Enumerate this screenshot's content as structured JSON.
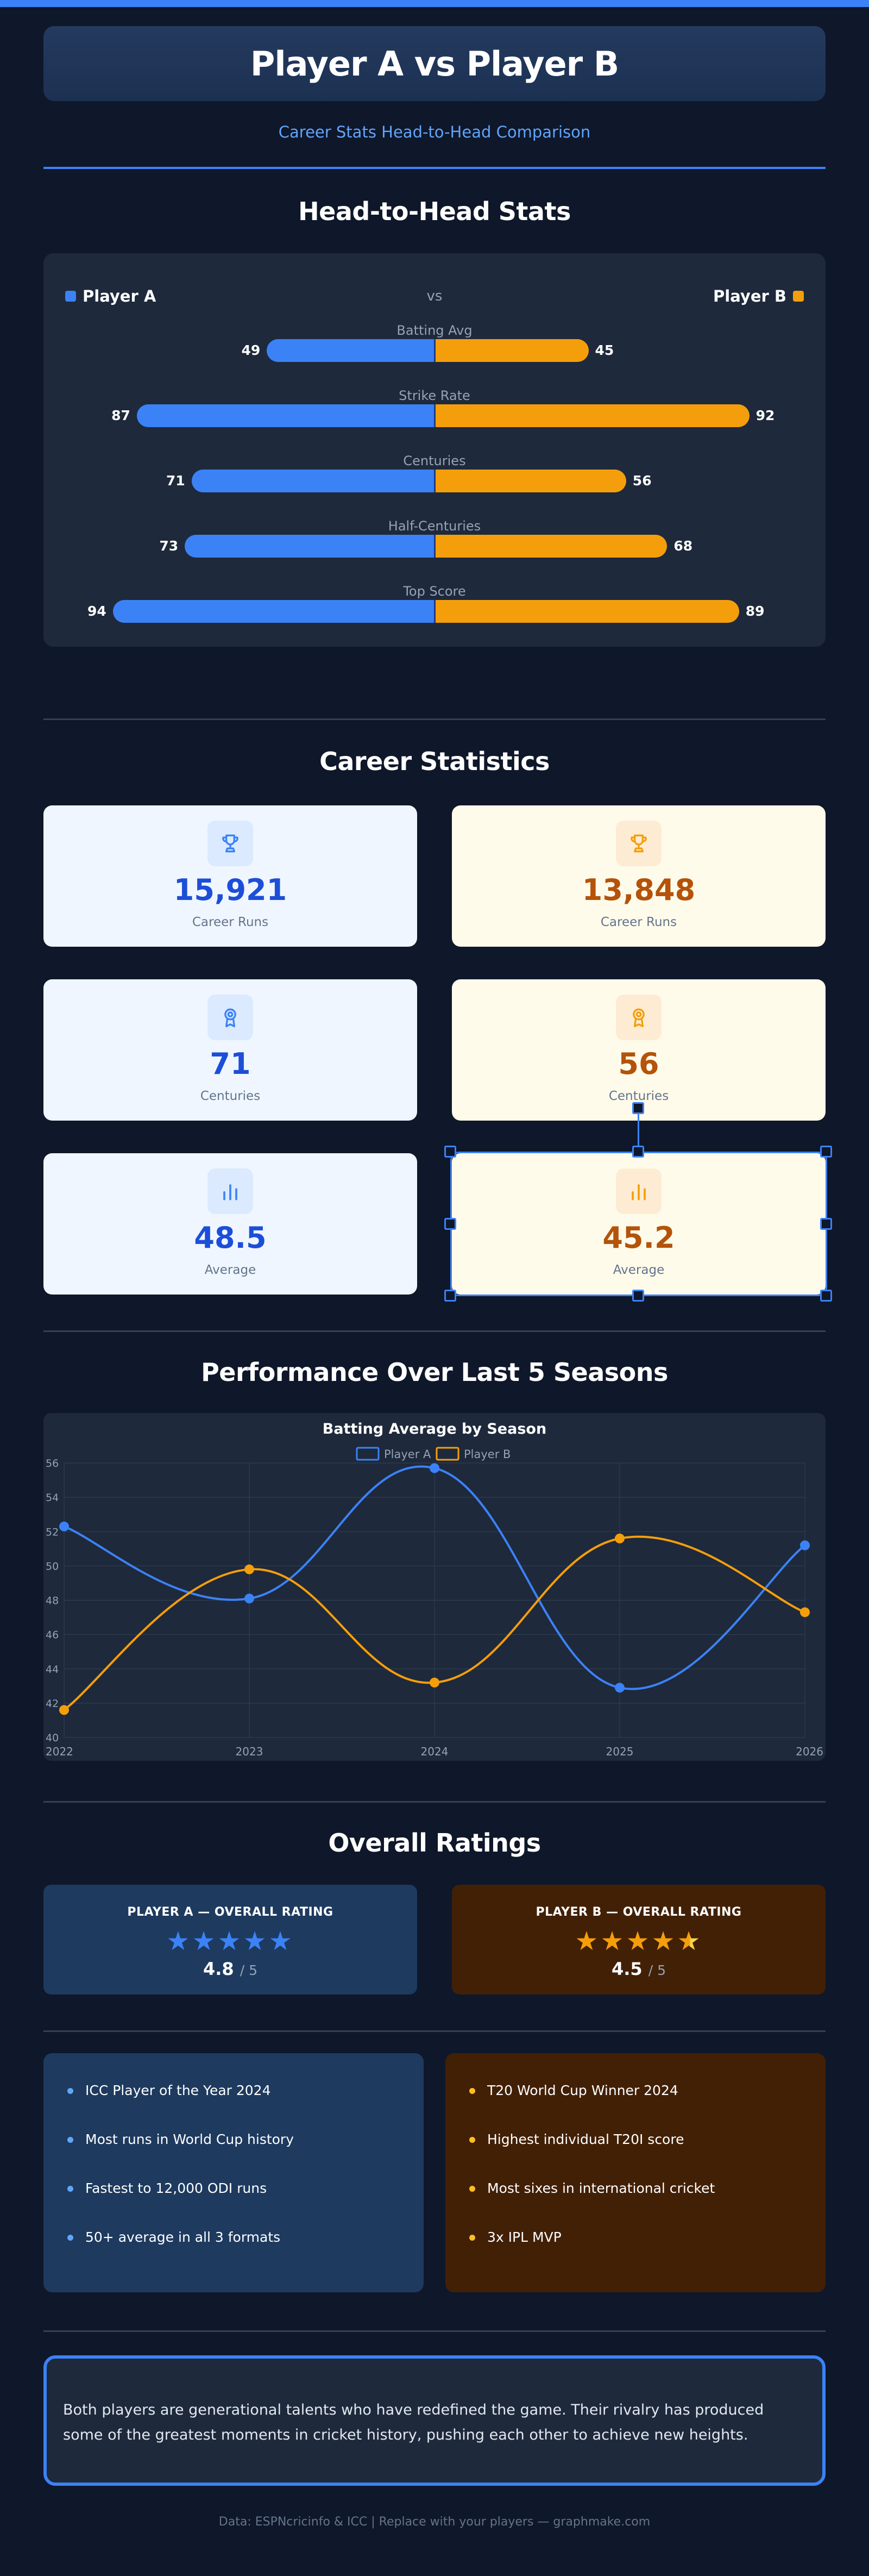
{
  "header": {
    "title": "Player A  vs  Player B",
    "subtitle": "Career Stats Head-to-Head Comparison"
  },
  "colors": {
    "player_a": "#3b82f6",
    "player_b": "#f59e0b",
    "background": "#0f172a"
  },
  "h2h": {
    "title": "Head-to-Head Stats",
    "player_a": "Player A",
    "player_b": "Player B",
    "vs": "vs",
    "stats": [
      {
        "label": "Batting Avg",
        "a": "49",
        "b": "45"
      },
      {
        "label": "Strike Rate",
        "a": "87",
        "b": "92"
      },
      {
        "label": "Centuries",
        "a": "71",
        "b": "56"
      },
      {
        "label": "Half-Centuries",
        "a": "73",
        "b": "68"
      },
      {
        "label": "Top Score",
        "a": "94",
        "b": "89"
      }
    ]
  },
  "career": {
    "title": "Career Statistics",
    "cards": [
      {
        "a": "15,921",
        "b": "13,848",
        "label": "Career Runs",
        "icon": "trophy-icon"
      },
      {
        "a": "71",
        "b": "56",
        "label": "Centuries",
        "icon": "award-icon"
      },
      {
        "a": "48.5",
        "b": "45.2",
        "label": "Average",
        "icon": "bar-chart-icon"
      }
    ]
  },
  "performance": {
    "title": "Performance Over Last 5 Seasons"
  },
  "chart_data": {
    "type": "line",
    "title": "Batting Average by Season",
    "x": [
      "2022",
      "2023",
      "2024",
      "2025",
      "2026"
    ],
    "series": [
      {
        "name": "Player A",
        "values": [
          52.3,
          48.1,
          55.7,
          42.9,
          51.2
        ]
      },
      {
        "name": "Player B",
        "values": [
          41.6,
          49.8,
          43.2,
          51.6,
          47.3
        ]
      }
    ],
    "ylim": [
      40,
      56
    ],
    "yticks": [
      "40",
      "42",
      "44",
      "46",
      "48",
      "50",
      "52",
      "54",
      "56"
    ],
    "grid": true,
    "legend": "top-center"
  },
  "ratings": {
    "title": "Overall Ratings",
    "a": {
      "label": "PLAYER A — OVERALL RATING",
      "score": "4.8",
      "out_of": "/ 5",
      "value": 4.8
    },
    "b": {
      "label": "PLAYER B — OVERALL RATING",
      "score": "4.5",
      "out_of": "/ 5",
      "value": 4.5
    }
  },
  "achievements": {
    "a": [
      "ICC Player of the Year 2024",
      "Most runs in World Cup history",
      "Fastest to 12,000 ODI runs",
      "50+ average in all 3 formats"
    ],
    "b": [
      "T20 World Cup Winner 2024",
      "Highest individual T20I score",
      "Most sixes in international cricket",
      "3x IPL MVP"
    ]
  },
  "summary": "Both players are generational talents who have redefined the game. Their rivalry has produced some of the greatest moments in cricket history, pushing each other to achieve new heights.",
  "footer": "Data: ESPNcricinfo & ICC | Replace with your players — graphmake.com"
}
